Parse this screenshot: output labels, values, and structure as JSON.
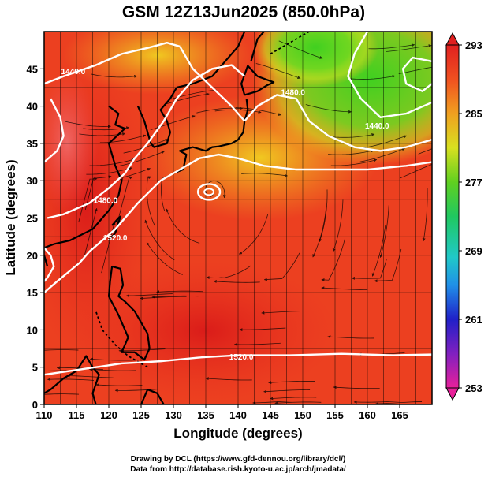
{
  "title": "GSM 12Z13Jun2025 (850.0hPa)",
  "x_axis": {
    "label": "Longitude (degrees)",
    "range": [
      110,
      170
    ],
    "ticks": [
      110,
      115,
      120,
      125,
      130,
      135,
      140,
      145,
      150,
      155,
      160,
      165
    ]
  },
  "y_axis": {
    "label": "Latitude  (degrees)",
    "range": [
      0,
      50
    ],
    "ticks": [
      0,
      5,
      10,
      15,
      20,
      25,
      30,
      35,
      40,
      45
    ]
  },
  "colorbar": {
    "range": [
      253,
      293
    ],
    "ticks": [
      293,
      285,
      277,
      269,
      261,
      253
    ],
    "colors": [
      "#e8209a",
      "#8020c0",
      "#2020c8",
      "#2090e8",
      "#20c8c8",
      "#20c860",
      "#60d020",
      "#d8e020",
      "#f0a020",
      "#f05020",
      "#e02020"
    ]
  },
  "contours": [
    {
      "label": "1440.0",
      "label_at": [
        114.5,
        44.3
      ]
    },
    {
      "label": "1480.0",
      "label_at": [
        148.5,
        41.5
      ]
    },
    {
      "label": "1440.0",
      "label_at": [
        161.5,
        37.0
      ]
    },
    {
      "label": "1480.0",
      "label_at": [
        119.5,
        27.0
      ]
    },
    {
      "label": "1520.0",
      "label_at": [
        121.0,
        22.0
      ]
    },
    {
      "label": "1520.0",
      "label_at": [
        140.5,
        6.0
      ]
    }
  ],
  "credits": {
    "line1": "Drawing by DCL (https://www.gfd-dennou.org/library/dcl/)",
    "line2": "Data from http://database.rish.kyoto-u.ac.jp/arch/jmadata/"
  }
}
